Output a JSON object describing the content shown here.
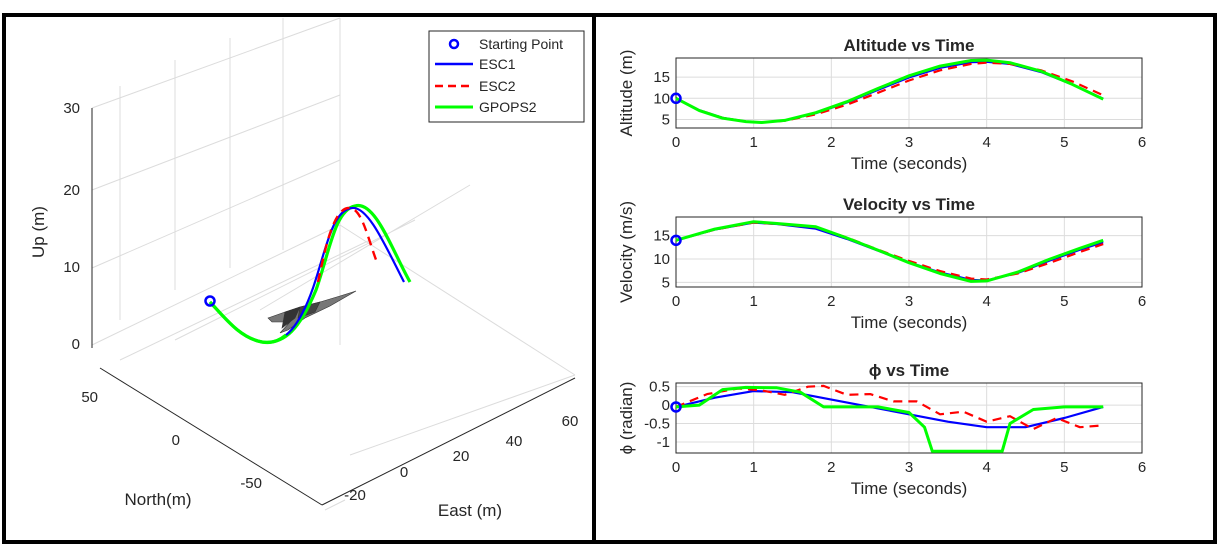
{
  "colors": {
    "blue": "#0000ff",
    "red": "#ff0000",
    "green": "#00ff00",
    "grid": "#dcdcdc",
    "axis": "#262626"
  },
  "chart_data": [
    {
      "id": "trajectory3d",
      "type": "line",
      "subtype": "3d",
      "xlabel": "East (m)",
      "ylabel": "North(m)",
      "zlabel": "Up (m)",
      "z_ticks": [
        "0",
        "10",
        "20",
        "30"
      ],
      "north_ticks": [
        "50",
        "0",
        "-50"
      ],
      "east_ticks": [
        "-20",
        "0",
        "20",
        "40",
        "60"
      ],
      "legend": [
        "Starting Point",
        "ESC1",
        "ESC2",
        "GPOPS2"
      ]
    },
    {
      "id": "altitude",
      "type": "line",
      "title": "Altitude vs Time",
      "xlabel": "Time (seconds)",
      "ylabel": "Altitude (m)",
      "xlim": [
        0,
        6
      ],
      "ylim": [
        3,
        19.5
      ],
      "x_ticks": [
        "0",
        "1",
        "2",
        "3",
        "4",
        "5",
        "6"
      ],
      "y_ticks": [
        "5",
        "10",
        "15"
      ],
      "start_point": [
        0,
        10
      ],
      "series": [
        {
          "name": "ESC1",
          "color": "blue",
          "x": [
            0,
            0.3,
            0.6,
            0.9,
            1.1,
            1.4,
            1.8,
            2.2,
            2.6,
            3.0,
            3.4,
            3.8,
            4.0,
            4.3,
            4.7,
            5.1,
            5.5
          ],
          "y": [
            10,
            7.2,
            5.4,
            4.5,
            4.3,
            4.8,
            6.5,
            9.0,
            12.0,
            14.9,
            17.2,
            18.5,
            18.6,
            18.1,
            16.2,
            13.3,
            9.9
          ]
        },
        {
          "name": "ESC2",
          "color": "red",
          "dashed": true,
          "x": [
            0,
            0.3,
            0.6,
            0.9,
            1.1,
            1.4,
            1.8,
            2.2,
            2.6,
            3.0,
            3.4,
            3.8,
            4.0,
            4.3,
            4.7,
            5.1,
            5.5
          ],
          "y": [
            10,
            7.2,
            5.4,
            4.5,
            4.3,
            4.7,
            6.2,
            8.5,
            11.3,
            14.2,
            16.6,
            18.1,
            18.4,
            18.1,
            16.6,
            14.0,
            10.7
          ]
        },
        {
          "name": "GPOPS2",
          "color": "green",
          "x": [
            0,
            0.3,
            0.6,
            0.9,
            1.1,
            1.4,
            1.8,
            2.2,
            2.6,
            3.0,
            3.4,
            3.8,
            4.0,
            4.3,
            4.7,
            5.1,
            5.5
          ],
          "y": [
            10,
            7.1,
            5.3,
            4.5,
            4.3,
            4.8,
            6.6,
            9.2,
            12.3,
            15.3,
            17.6,
            18.9,
            19.0,
            18.4,
            16.4,
            13.3,
            9.8
          ]
        }
      ]
    },
    {
      "id": "velocity",
      "type": "line",
      "title": "Velocity vs Time",
      "xlabel": "Time (seconds)",
      "ylabel": "Velocity (m/s)",
      "xlim": [
        0,
        6
      ],
      "ylim": [
        4,
        19
      ],
      "x_ticks": [
        "0",
        "1",
        "2",
        "3",
        "4",
        "5",
        "6"
      ],
      "y_ticks": [
        "5",
        "10",
        "15"
      ],
      "start_point": [
        0,
        14
      ],
      "series": [
        {
          "name": "ESC1",
          "color": "blue",
          "x": [
            0,
            0.5,
            1.0,
            1.3,
            1.8,
            2.2,
            2.6,
            3.0,
            3.4,
            3.8,
            4.0,
            4.4,
            4.8,
            5.2,
            5.5
          ],
          "y": [
            14,
            16.3,
            17.8,
            17.5,
            16.5,
            14.3,
            11.8,
            9.3,
            7.1,
            5.5,
            5.4,
            7.0,
            9.6,
            12.0,
            13.6
          ]
        },
        {
          "name": "ESC2",
          "color": "red",
          "dashed": true,
          "x": [
            0,
            0.5,
            1.0,
            1.3,
            1.8,
            2.2,
            2.6,
            3.0,
            3.4,
            3.8,
            4.0,
            4.4,
            4.8,
            5.2,
            5.5
          ],
          "y": [
            14,
            16.3,
            17.8,
            17.5,
            16.8,
            14.6,
            12.0,
            9.6,
            7.4,
            5.8,
            5.6,
            6.9,
            9.1,
            11.5,
            13.2
          ]
        },
        {
          "name": "GPOPS2",
          "color": "green",
          "x": [
            0,
            0.5,
            1.0,
            1.3,
            1.8,
            2.2,
            2.6,
            3.0,
            3.4,
            3.8,
            4.0,
            4.4,
            4.8,
            5.2,
            5.5
          ],
          "y": [
            14,
            16.4,
            18.0,
            17.6,
            16.9,
            14.5,
            11.9,
            9.2,
            6.9,
            5.2,
            5.3,
            7.2,
            9.9,
            12.3,
            14.0
          ]
        }
      ]
    },
    {
      "id": "phi",
      "type": "line",
      "title": "ϕ vs Time",
      "xlabel": "Time (seconds)",
      "ylabel": "ϕ (radian)",
      "xlim": [
        0,
        6
      ],
      "ylim": [
        -1.3,
        0.6
      ],
      "x_ticks": [
        "0",
        "1",
        "2",
        "3",
        "4",
        "5",
        "6"
      ],
      "y_ticks": [
        "0.5",
        "0",
        "-0.5",
        "-1"
      ],
      "start_point": [
        0,
        -0.05
      ],
      "series": [
        {
          "name": "ESC1",
          "color": "blue",
          "x": [
            0,
            0.5,
            1.0,
            1.5,
            2.0,
            2.5,
            3.0,
            3.5,
            4.0,
            4.5,
            5.0,
            5.5
          ],
          "y": [
            -0.05,
            0.2,
            0.38,
            0.35,
            0.15,
            -0.05,
            -0.25,
            -0.45,
            -0.6,
            -0.6,
            -0.35,
            -0.05
          ]
        },
        {
          "name": "ESC2",
          "color": "red",
          "dashed": true,
          "x": [
            0,
            0.4,
            0.8,
            1.1,
            1.4,
            1.7,
            1.9,
            2.2,
            2.5,
            2.8,
            3.1,
            3.4,
            3.7,
            4.0,
            4.3,
            4.6,
            4.9,
            5.2,
            5.5
          ],
          "y": [
            -0.05,
            0.3,
            0.45,
            0.4,
            0.28,
            0.5,
            0.52,
            0.28,
            0.3,
            0.1,
            0.1,
            -0.25,
            -0.18,
            -0.45,
            -0.3,
            -0.65,
            -0.35,
            -0.6,
            -0.55
          ]
        },
        {
          "name": "GPOPS2",
          "color": "green",
          "x": [
            0,
            0.3,
            0.6,
            0.9,
            1.3,
            1.6,
            1.9,
            2.2,
            2.6,
            3.0,
            3.2,
            3.3,
            3.6,
            4.0,
            4.2,
            4.3,
            4.6,
            5.0,
            5.5
          ],
          "y": [
            -0.05,
            0.0,
            0.42,
            0.48,
            0.47,
            0.35,
            -0.05,
            -0.05,
            -0.05,
            -0.2,
            -0.6,
            -1.25,
            -1.25,
            -1.25,
            -1.25,
            -0.5,
            -0.12,
            -0.05,
            -0.05
          ]
        }
      ]
    }
  ]
}
